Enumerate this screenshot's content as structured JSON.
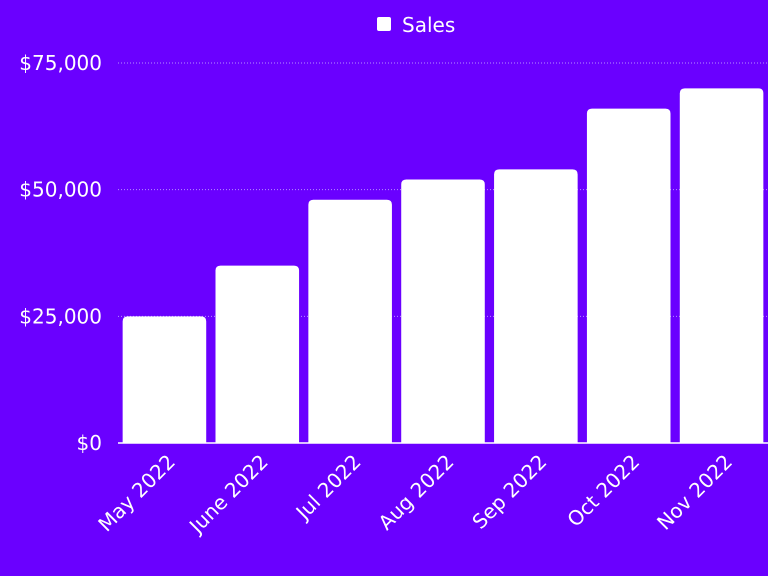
{
  "colors": {
    "background": "#6a00ff",
    "bar": "#ffffff",
    "text": "#ffffff"
  },
  "legend": {
    "label": "Sales",
    "icon": "square-legend-icon",
    "placement": "top-center"
  },
  "chart_data": {
    "type": "bar",
    "categories": [
      "May 2022",
      "June 2022",
      "Jul 2022",
      "Aug 2022",
      "Sep 2022",
      "Oct 2022",
      "Nov 2022"
    ],
    "series": [
      {
        "name": "Sales",
        "values": [
          25000,
          35000,
          48000,
          52000,
          54000,
          66000,
          70000
        ]
      }
    ],
    "ylim": [
      0,
      75000
    ],
    "yticks": [
      0,
      25000,
      50000,
      75000
    ],
    "ytick_labels": [
      "$0",
      "$25,000",
      "$50,000",
      "$75,000"
    ],
    "grid": true,
    "legend_placement": "top-center"
  }
}
